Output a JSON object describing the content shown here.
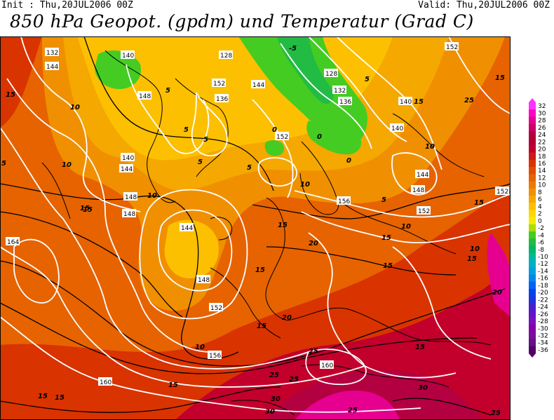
{
  "header": {
    "init": "Init : Thu,20JUL2006 00Z",
    "valid": "Valid: Thu,20JUL2006 00Z",
    "title": "850 hPa Geopot. (gpdm) und Temperatur (Grad C)"
  },
  "legend": {
    "labels": [
      "32",
      "30",
      "28",
      "26",
      "24",
      "22",
      "20",
      "18",
      "16",
      "14",
      "12",
      "10",
      "8",
      "6",
      "4",
      "2",
      "0",
      "-2",
      "-4",
      "-6",
      "-8",
      "-10",
      "-12",
      "-14",
      "-16",
      "-18",
      "-20",
      "-22",
      "-24",
      "-26",
      "-28",
      "-30",
      "-32",
      "-34",
      "-36"
    ],
    "colors": [
      "#ff33ff",
      "#ff00cc",
      "#e6008f",
      "#cc0066",
      "#b30040",
      "#b30033",
      "#c2002b",
      "#cc1a1a",
      "#d93300",
      "#e04d00",
      "#e66300",
      "#eb7a00",
      "#f09000",
      "#f5a800",
      "#fcc000",
      "#ffd800",
      "#f2ec00",
      "#aadf00",
      "#44cc22",
      "#22bb44",
      "#00b866",
      "#00b8a0",
      "#00b0c8",
      "#00a0e0",
      "#0088f0",
      "#0066f0",
      "#0044ee",
      "#2233dd",
      "#4422cc",
      "#6611cc",
      "#7711bb",
      "#8800aa",
      "#771199",
      "#661188",
      "#550066"
    ]
  },
  "map": {
    "geopotential_labels": [
      "132",
      "140",
      "144",
      "128",
      "148",
      "152",
      "136",
      "144",
      "140",
      "144",
      "148",
      "152",
      "136",
      "128",
      "132",
      "140",
      "152",
      "140",
      "144",
      "148",
      "152",
      "148",
      "144",
      "148",
      "152",
      "164",
      "156",
      "152",
      "160",
      "156",
      "160"
    ],
    "temperature_labels": [
      "5",
      "10",
      "15",
      "20",
      "25",
      "30",
      "-5",
      "0"
    ]
  }
}
